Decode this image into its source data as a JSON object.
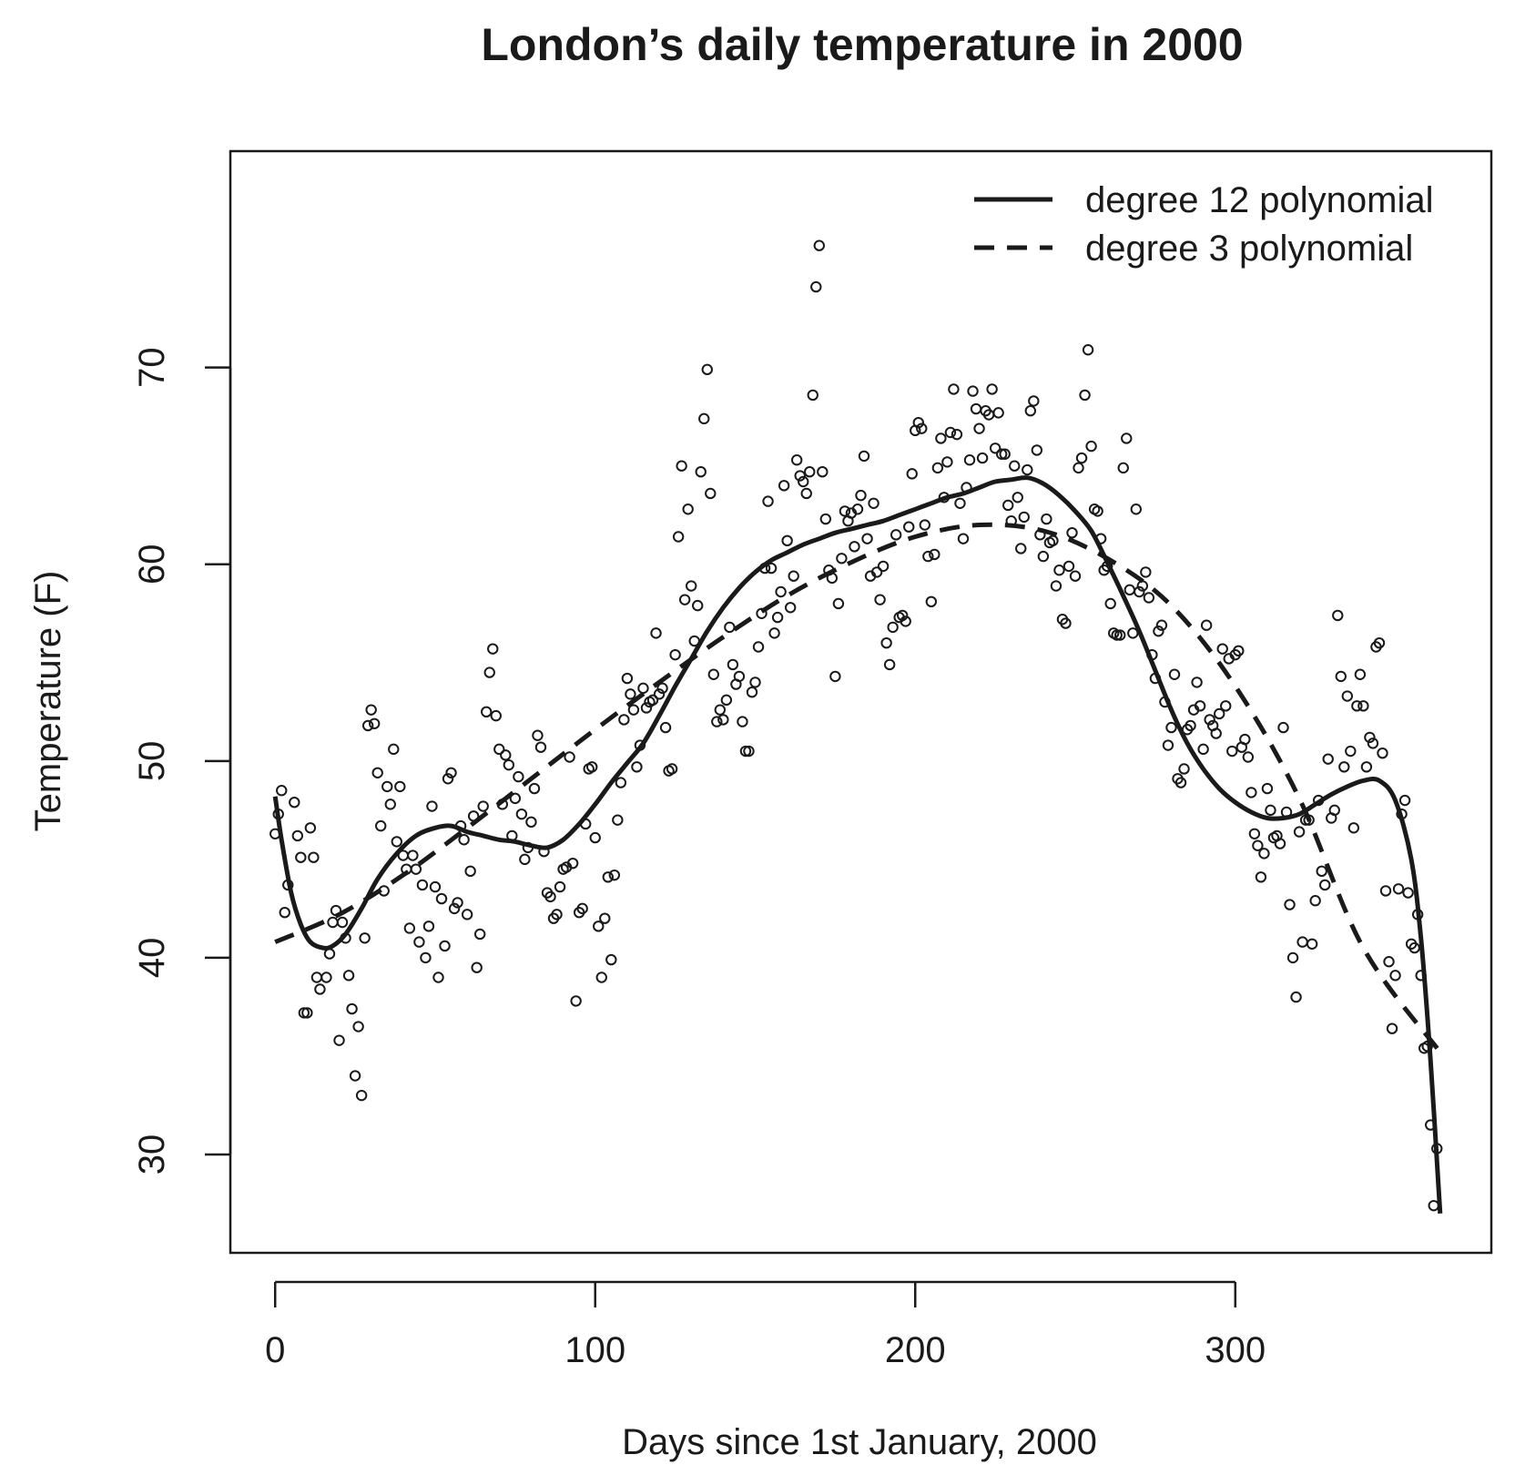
{
  "chart_data": {
    "type": "scatter",
    "title": "London’s daily temperature in 2000",
    "xlabel": "Days since 1st January, 2000",
    "ylabel": "Temperature (F)",
    "xlim": [
      -14,
      380
    ],
    "ylim": [
      25,
      81
    ],
    "x_ticks": [
      0,
      100,
      200,
      300
    ],
    "y_ticks": [
      30,
      40,
      50,
      60,
      70
    ],
    "grid": false,
    "legend_position": "top-right",
    "colors": {
      "ink": "#1a1a1a"
    },
    "legend": [
      {
        "label": "degree 12 polynomial",
        "style": "solid"
      },
      {
        "label": "degree 3 polynomial",
        "style": "dashed"
      }
    ],
    "points": [
      [
        0,
        46.3
      ],
      [
        1,
        47.3
      ],
      [
        2,
        48.5
      ],
      [
        3,
        42.3
      ],
      [
        4,
        43.7
      ],
      [
        6,
        47.9
      ],
      [
        7,
        46.2
      ],
      [
        8,
        45.1
      ],
      [
        9,
        37.2
      ],
      [
        10,
        37.2
      ],
      [
        11,
        46.6
      ],
      [
        12,
        45.1
      ],
      [
        13,
        39.0
      ],
      [
        14,
        38.4
      ],
      [
        16,
        39.0
      ],
      [
        17,
        40.2
      ],
      [
        18,
        41.8
      ],
      [
        19,
        42.4
      ],
      [
        20,
        35.8
      ],
      [
        21,
        41.8
      ],
      [
        22,
        41.0
      ],
      [
        23,
        39.1
      ],
      [
        24,
        37.4
      ],
      [
        25,
        34.0
      ],
      [
        26,
        36.5
      ],
      [
        27,
        33.0
      ],
      [
        28,
        41.0
      ],
      [
        29,
        51.8
      ],
      [
        30,
        52.6
      ],
      [
        31,
        51.9
      ],
      [
        32,
        49.4
      ],
      [
        33,
        46.7
      ],
      [
        34,
        43.4
      ],
      [
        35,
        48.7
      ],
      [
        36,
        47.8
      ],
      [
        37,
        50.6
      ],
      [
        38,
        45.9
      ],
      [
        39,
        48.7
      ],
      [
        40,
        45.2
      ],
      [
        41,
        44.5
      ],
      [
        42,
        41.5
      ],
      [
        43,
        45.2
      ],
      [
        44,
        44.5
      ],
      [
        45,
        40.8
      ],
      [
        46,
        43.7
      ],
      [
        47,
        40.0
      ],
      [
        48,
        41.6
      ],
      [
        49,
        47.7
      ],
      [
        50,
        43.6
      ],
      [
        51,
        39.0
      ],
      [
        52,
        43.0
      ],
      [
        53,
        40.6
      ],
      [
        54,
        49.1
      ],
      [
        55,
        49.4
      ],
      [
        56,
        42.5
      ],
      [
        57,
        42.8
      ],
      [
        58,
        46.7
      ],
      [
        59,
        46.0
      ],
      [
        60,
        42.2
      ],
      [
        61,
        44.4
      ],
      [
        62,
        47.2
      ],
      [
        63,
        39.5
      ],
      [
        64,
        41.2
      ],
      [
        65,
        47.7
      ],
      [
        66,
        52.5
      ],
      [
        67,
        54.5
      ],
      [
        68,
        55.7
      ],
      [
        69,
        52.3
      ],
      [
        70,
        50.6
      ],
      [
        71,
        47.8
      ],
      [
        72,
        50.3
      ],
      [
        73,
        49.8
      ],
      [
        74,
        46.2
      ],
      [
        75,
        48.1
      ],
      [
        76,
        49.2
      ],
      [
        77,
        47.3
      ],
      [
        78,
        45.0
      ],
      [
        79,
        45.6
      ],
      [
        80,
        46.9
      ],
      [
        81,
        48.6
      ],
      [
        82,
        51.3
      ],
      [
        83,
        50.7
      ],
      [
        84,
        45.4
      ],
      [
        85,
        43.3
      ],
      [
        86,
        43.1
      ],
      [
        87,
        42.0
      ],
      [
        88,
        42.2
      ],
      [
        89,
        43.6
      ],
      [
        90,
        44.5
      ],
      [
        91,
        44.6
      ],
      [
        92,
        50.2
      ],
      [
        93,
        44.8
      ],
      [
        94,
        37.8
      ],
      [
        95,
        42.3
      ],
      [
        96,
        42.5
      ],
      [
        97,
        46.8
      ],
      [
        98,
        49.6
      ],
      [
        99,
        49.7
      ],
      [
        100,
        46.1
      ],
      [
        101,
        41.6
      ],
      [
        102,
        39.0
      ],
      [
        103,
        42.0
      ],
      [
        104,
        44.1
      ],
      [
        105,
        39.9
      ],
      [
        106,
        44.2
      ],
      [
        107,
        47.0
      ],
      [
        108,
        48.9
      ],
      [
        109,
        52.1
      ],
      [
        110,
        54.2
      ],
      [
        111,
        53.4
      ],
      [
        112,
        52.6
      ],
      [
        113,
        49.7
      ],
      [
        114,
        50.8
      ],
      [
        115,
        53.7
      ],
      [
        116,
        52.7
      ],
      [
        117,
        53.0
      ],
      [
        118,
        53.1
      ],
      [
        119,
        56.5
      ],
      [
        120,
        53.4
      ],
      [
        121,
        53.7
      ],
      [
        122,
        51.7
      ],
      [
        123,
        49.5
      ],
      [
        124,
        49.6
      ],
      [
        125,
        55.4
      ],
      [
        126,
        61.4
      ],
      [
        127,
        65.0
      ],
      [
        128,
        58.2
      ],
      [
        129,
        62.8
      ],
      [
        130,
        58.9
      ],
      [
        131,
        56.1
      ],
      [
        132,
        57.9
      ],
      [
        133,
        64.7
      ],
      [
        134,
        67.4
      ],
      [
        135,
        69.9
      ],
      [
        136,
        63.6
      ],
      [
        137,
        54.4
      ],
      [
        138,
        52.0
      ],
      [
        139,
        52.6
      ],
      [
        140,
        52.1
      ],
      [
        141,
        53.1
      ],
      [
        142,
        56.8
      ],
      [
        143,
        54.9
      ],
      [
        144,
        53.9
      ],
      [
        145,
        54.3
      ],
      [
        146,
        52.0
      ],
      [
        147,
        50.5
      ],
      [
        148,
        50.5
      ],
      [
        149,
        53.5
      ],
      [
        150,
        54.0
      ],
      [
        151,
        55.8
      ],
      [
        152,
        57.5
      ],
      [
        153,
        59.8
      ],
      [
        154,
        63.2
      ],
      [
        155,
        59.8
      ],
      [
        156,
        56.5
      ],
      [
        157,
        57.3
      ],
      [
        158,
        58.6
      ],
      [
        159,
        64.0
      ],
      [
        160,
        61.2
      ],
      [
        161,
        57.8
      ],
      [
        162,
        59.4
      ],
      [
        163,
        65.3
      ],
      [
        164,
        64.5
      ],
      [
        165,
        64.2
      ],
      [
        166,
        63.6
      ],
      [
        167,
        64.7
      ],
      [
        168,
        68.6
      ],
      [
        169,
        74.1
      ],
      [
        170,
        76.2
      ],
      [
        171,
        64.7
      ],
      [
        172,
        62.3
      ],
      [
        173,
        59.7
      ],
      [
        174,
        59.3
      ],
      [
        175,
        54.3
      ],
      [
        176,
        58.0
      ],
      [
        177,
        60.3
      ],
      [
        178,
        62.7
      ],
      [
        179,
        62.2
      ],
      [
        180,
        62.6
      ],
      [
        181,
        60.9
      ],
      [
        182,
        62.8
      ],
      [
        183,
        63.5
      ],
      [
        184,
        65.5
      ],
      [
        185,
        61.3
      ],
      [
        186,
        59.4
      ],
      [
        187,
        63.1
      ],
      [
        188,
        59.6
      ],
      [
        189,
        58.2
      ],
      [
        190,
        59.9
      ],
      [
        191,
        56.0
      ],
      [
        192,
        54.9
      ],
      [
        193,
        56.8
      ],
      [
        194,
        61.5
      ],
      [
        195,
        57.3
      ],
      [
        196,
        57.4
      ],
      [
        197,
        57.1
      ],
      [
        198,
        61.9
      ],
      [
        199,
        64.6
      ],
      [
        200,
        66.8
      ],
      [
        201,
        67.2
      ],
      [
        202,
        66.9
      ],
      [
        203,
        62.0
      ],
      [
        204,
        60.4
      ],
      [
        205,
        58.1
      ],
      [
        206,
        60.5
      ],
      [
        207,
        64.9
      ],
      [
        208,
        66.4
      ],
      [
        209,
        63.4
      ],
      [
        210,
        65.2
      ],
      [
        211,
        66.7
      ],
      [
        212,
        68.9
      ],
      [
        213,
        66.6
      ],
      [
        214,
        63.1
      ],
      [
        215,
        61.3
      ],
      [
        216,
        63.9
      ],
      [
        217,
        65.3
      ],
      [
        218,
        68.8
      ],
      [
        219,
        67.9
      ],
      [
        220,
        66.9
      ],
      [
        221,
        65.4
      ],
      [
        222,
        67.8
      ],
      [
        223,
        67.6
      ],
      [
        224,
        68.9
      ],
      [
        225,
        65.9
      ],
      [
        226,
        67.7
      ],
      [
        227,
        65.6
      ],
      [
        228,
        65.6
      ],
      [
        229,
        63.0
      ],
      [
        230,
        62.2
      ],
      [
        231,
        65.0
      ],
      [
        232,
        63.4
      ],
      [
        233,
        60.8
      ],
      [
        234,
        62.4
      ],
      [
        235,
        64.8
      ],
      [
        236,
        67.8
      ],
      [
        237,
        68.3
      ],
      [
        238,
        65.8
      ],
      [
        239,
        61.5
      ],
      [
        240,
        60.4
      ],
      [
        241,
        62.3
      ],
      [
        242,
        61.1
      ],
      [
        243,
        61.2
      ],
      [
        244,
        58.9
      ],
      [
        245,
        59.7
      ],
      [
        246,
        57.2
      ],
      [
        247,
        57.0
      ],
      [
        248,
        59.9
      ],
      [
        249,
        61.6
      ],
      [
        250,
        59.4
      ],
      [
        251,
        64.9
      ],
      [
        252,
        65.4
      ],
      [
        253,
        68.6
      ],
      [
        254,
        70.9
      ],
      [
        255,
        66.0
      ],
      [
        256,
        62.8
      ],
      [
        257,
        62.7
      ],
      [
        258,
        61.3
      ],
      [
        259,
        59.7
      ],
      [
        260,
        59.9
      ],
      [
        261,
        58.0
      ],
      [
        262,
        56.5
      ],
      [
        263,
        56.4
      ],
      [
        264,
        56.4
      ],
      [
        265,
        64.9
      ],
      [
        266,
        66.4
      ],
      [
        267,
        58.7
      ],
      [
        268,
        56.5
      ],
      [
        269,
        62.8
      ],
      [
        270,
        58.6
      ],
      [
        271,
        58.9
      ],
      [
        272,
        59.6
      ],
      [
        273,
        58.3
      ],
      [
        274,
        55.4
      ],
      [
        275,
        54.2
      ],
      [
        276,
        56.6
      ],
      [
        277,
        56.9
      ],
      [
        278,
        53.0
      ],
      [
        279,
        50.8
      ],
      [
        280,
        51.7
      ],
      [
        281,
        54.4
      ],
      [
        282,
        49.1
      ],
      [
        283,
        48.9
      ],
      [
        284,
        49.6
      ],
      [
        285,
        51.6
      ],
      [
        286,
        51.8
      ],
      [
        287,
        52.6
      ],
      [
        288,
        54.0
      ],
      [
        289,
        52.8
      ],
      [
        290,
        50.6
      ],
      [
        291,
        56.9
      ],
      [
        292,
        52.1
      ],
      [
        293,
        51.8
      ],
      [
        294,
        51.4
      ],
      [
        295,
        52.4
      ],
      [
        296,
        55.7
      ],
      [
        297,
        52.8
      ],
      [
        298,
        55.2
      ],
      [
        299,
        50.5
      ],
      [
        300,
        55.4
      ],
      [
        301,
        55.6
      ],
      [
        302,
        50.7
      ],
      [
        303,
        51.1
      ],
      [
        304,
        50.2
      ],
      [
        305,
        48.4
      ],
      [
        306,
        46.3
      ],
      [
        307,
        45.7
      ],
      [
        308,
        44.1
      ],
      [
        309,
        45.3
      ],
      [
        310,
        48.6
      ],
      [
        311,
        47.5
      ],
      [
        312,
        46.1
      ],
      [
        313,
        46.2
      ],
      [
        314,
        45.8
      ],
      [
        315,
        51.7
      ],
      [
        316,
        47.4
      ],
      [
        317,
        42.7
      ],
      [
        318,
        40.0
      ],
      [
        319,
        38.0
      ],
      [
        320,
        46.4
      ],
      [
        321,
        40.8
      ],
      [
        322,
        47.0
      ],
      [
        323,
        47.0
      ],
      [
        324,
        40.7
      ],
      [
        325,
        42.9
      ],
      [
        326,
        48.0
      ],
      [
        327,
        44.4
      ],
      [
        328,
        43.7
      ],
      [
        329,
        50.1
      ],
      [
        330,
        47.1
      ],
      [
        331,
        47.5
      ],
      [
        332,
        57.4
      ],
      [
        333,
        54.3
      ],
      [
        334,
        49.7
      ],
      [
        335,
        53.3
      ],
      [
        336,
        50.5
      ],
      [
        337,
        46.6
      ],
      [
        338,
        52.8
      ],
      [
        339,
        54.4
      ],
      [
        340,
        52.8
      ],
      [
        341,
        49.7
      ],
      [
        342,
        51.2
      ],
      [
        343,
        50.9
      ],
      [
        344,
        55.8
      ],
      [
        345,
        56.0
      ],
      [
        346,
        50.4
      ],
      [
        347,
        43.4
      ],
      [
        348,
        39.8
      ],
      [
        349,
        36.4
      ],
      [
        350,
        39.1
      ],
      [
        351,
        43.5
      ],
      [
        352,
        47.3
      ],
      [
        353,
        48.0
      ],
      [
        354,
        43.3
      ],
      [
        355,
        40.7
      ],
      [
        356,
        40.5
      ],
      [
        357,
        42.2
      ],
      [
        358,
        39.1
      ],
      [
        359,
        35.4
      ],
      [
        360,
        35.5
      ],
      [
        361,
        31.5
      ],
      [
        362,
        27.4
      ],
      [
        363,
        30.3
      ]
    ],
    "series": [
      {
        "name": "degree 12 polynomial",
        "style": "solid",
        "x": [
          0,
          2,
          5,
          8,
          11,
          15,
          18,
          22,
          27,
          32,
          38,
          44,
          50,
          55,
          60,
          65,
          70,
          75,
          80,
          85,
          90,
          95,
          100,
          105,
          110,
          115,
          120,
          125,
          130,
          135,
          140,
          145,
          150,
          155,
          160,
          165,
          170,
          175,
          180,
          185,
          190,
          195,
          200,
          205,
          210,
          215,
          220,
          225,
          230,
          235,
          240,
          245,
          250,
          255,
          260,
          265,
          270,
          275,
          280,
          285,
          290,
          295,
          300,
          305,
          310,
          315,
          320,
          325,
          330,
          335,
          340,
          345,
          350,
          355,
          358,
          361,
          364
        ],
        "y": [
          48.2,
          46.0,
          43.3,
          41.7,
          40.8,
          40.5,
          40.6,
          41.2,
          42.5,
          44.0,
          45.3,
          46.2,
          46.6,
          46.7,
          46.4,
          46.2,
          46.0,
          45.9,
          45.7,
          45.6,
          46.0,
          46.8,
          47.8,
          48.9,
          49.9,
          50.9,
          52.3,
          53.8,
          55.2,
          56.6,
          57.8,
          58.8,
          59.6,
          60.2,
          60.6,
          61.0,
          61.3,
          61.6,
          61.8,
          62.0,
          62.2,
          62.5,
          62.8,
          63.1,
          63.4,
          63.6,
          63.9,
          64.2,
          64.3,
          64.4,
          64.1,
          63.5,
          62.7,
          61.7,
          60.1,
          58.4,
          56.6,
          54.6,
          52.6,
          50.9,
          49.6,
          48.6,
          47.9,
          47.4,
          47.1,
          47.1,
          47.3,
          47.8,
          48.3,
          48.7,
          49.0,
          49.0,
          48.0,
          45.0,
          41.0,
          34.8,
          27.0
        ]
      },
      {
        "name": "degree 3 polynomial",
        "style": "dashed",
        "x": [
          0,
          20,
          40,
          60,
          80,
          100,
          120,
          140,
          160,
          180,
          200,
          220,
          240,
          260,
          280,
          300,
          320,
          340,
          364
        ],
        "y": [
          40.8,
          42.2,
          44.2,
          46.6,
          49.1,
          51.6,
          54.0,
          56.3,
          58.4,
          60.1,
          61.4,
          62.0,
          61.7,
          60.3,
          57.9,
          53.8,
          48.1,
          40.5,
          35.2
        ]
      }
    ]
  }
}
